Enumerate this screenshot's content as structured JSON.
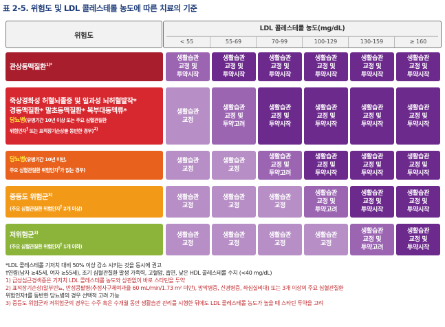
{
  "title": "표 2-5. 위험도 및 LDL 콜레스테롤 농도에 따른 치료의 기준",
  "header": {
    "risk_label": "위험도",
    "ldl_label": "LDL 콜레스테롤 농도(mg/dL)",
    "columns": [
      "< 55",
      "55-69",
      "70-99",
      "100-129",
      "130-159",
      "≥ 160"
    ]
  },
  "rows": [
    {
      "color": "#a81e2d",
      "line1": "관상동맥질환",
      "sup1": "1)*",
      "cells": [
        "생활습관|교정 및|투약시작",
        "생활습관|교정 및|투약시작",
        "생활습관|교정 및|투약시작",
        "생활습관|교정 및|투약시작",
        "생활습관|교정 및|투약시작",
        "생활습관|교정 및|투약시작"
      ],
      "shades": [
        "mid",
        "dark",
        "dark",
        "dark",
        "dark",
        "dark"
      ]
    },
    {
      "color": "#d7282f",
      "line1": "죽상경화성 허혈뇌졸중 및 일과성 뇌허혈발작*",
      "line2": "경동맥질환*  말초동맥질환*  복부대동맥류*",
      "line3_yellow": "당뇨병",
      "line3_rest": "(유병기간 10년 이상 또는 주요 심혈관질환",
      "line4": "위험인자",
      "line4_rest": " 또는 표적장기손상을 동반한 경우)",
      "line4_sup": "2)",
      "cells": [
        "생활습관|교정",
        "생활습관|교정 및|투약고려",
        "생활습관|교정 및|투약시작",
        "생활습관|교정 및|투약시작",
        "생활습관|교정 및|투약시작",
        "생활습관|교정 및|투약시작"
      ],
      "shades": [
        "light",
        "mid",
        "dark",
        "dark",
        "dark",
        "dark"
      ]
    },
    {
      "color": "#e8621d",
      "line1_yellow": "당뇨병",
      "line1_rest": "(유병기간 10년 미만,",
      "line2": "주요 심혈관질환 위험인자",
      "line2_rest": "가 없는 경우)",
      "cells": [
        "생활습관|교정",
        "생활습관|교정",
        "생활습관|교정 및|투약고려",
        "생활습관|교정 및|투약시작",
        "생활습관|교정 및|투약시작",
        "생활습관|교정 및|투약시작"
      ],
      "shades": [
        "light",
        "light",
        "mid",
        "dark",
        "dark",
        "dark"
      ]
    },
    {
      "color": "#f29a17",
      "line1": "중등도 위험군",
      "sup1": "3)",
      "line2": "(주요 심혈관질환 위험인자",
      "line2_rest": " 2개 이상)",
      "cells": [
        "생활습관|교정",
        "생활습관|교정",
        "생활습관|교정",
        "생활습관|교정 및|투약고려",
        "생활습관|교정 및|투약시작",
        "생활습관|교정 및|투약시작"
      ],
      "shades": [
        "light",
        "light",
        "light",
        "mid",
        "dark",
        "dark"
      ]
    },
    {
      "color": "#8cb43a",
      "line1": "저위험군",
      "sup1": "3)",
      "line2": "(주요 심혈관질환 위험인자",
      "line2_rest": " 1개 이하)",
      "cells": [
        "생활습관|교정",
        "생활습관|교정",
        "생활습관|교정",
        "생활습관|교정",
        "생활습관|교정 및|투약고려",
        "생활습관|교정 및|투약시작"
      ],
      "shades": [
        "light",
        "light",
        "light",
        "light",
        "mid",
        "dark"
      ]
    }
  ],
  "notes": [
    {
      "text": "*LDL 콜레스테롤 기저치 대비 50% 이상 감소 시키는 것을 동시에 권고",
      "red": false
    },
    {
      "text": "†연령(남자 ≥45세, 여자 ≥55세), 조기 심혈관질환 발생 가족력, 고혈압, 흡연, 낮은 HDL 콜레스테롤 수치 (<40 mg/dL)",
      "red": false
    },
    {
      "text": "1) 급성심근경색증은 기저치 LDL 콜레스테롤 농도와 상관없이 바로 스타틴을 투약",
      "red": true
    },
    {
      "text": "2) 표적장기손상(알부민뇨, 만성콩팥병(추정사구체여과율 60 mL/min/1.73 m² 미만), 망막병증, 신경병증, 좌심실비대) 또는 3개 이상의 주요 심혈관질환",
      "red": true
    },
    {
      "text": "   위험인자†를 동반한 당뇨병의 경우 선택적 고려 가능",
      "red": false
    },
    {
      "text": "3) 중등도 위험군과 저위험군의 경우는 수주 혹은 수개월 동안 생활습관 관리를 시행한 뒤에도 LDL 콜레스테롤 농도가 높을 때 스타틴 투약을 고려",
      "red": true
    }
  ]
}
